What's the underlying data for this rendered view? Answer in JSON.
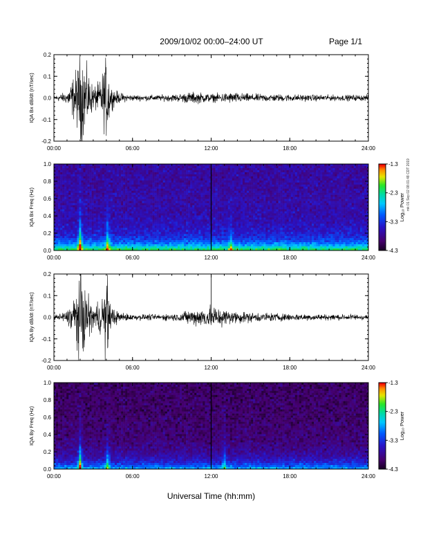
{
  "header": {
    "title": "2009/10/02   00:00–24:00 UT",
    "page": "Page 1/1"
  },
  "footer": {
    "xlabel": "Universal Time (hh:mm)",
    "side_tag": "mk 01 Sep 02 08:01:48 CDT 2019"
  },
  "chart_data": [
    {
      "type": "line",
      "ylabel": "IQA Bx dB/dt (nT/sec)",
      "ylim": [
        -0.2,
        0.2
      ],
      "yticks": [
        "0.2",
        "0.1",
        "0.0",
        "-0.1",
        "-0.2"
      ],
      "xticks": [
        "00:00",
        "06:00",
        "12:00",
        "18:00",
        "24:00"
      ],
      "xlim": [
        0,
        24
      ],
      "series": [
        {
          "x": [
            0,
            1,
            1.8,
            2,
            2.2,
            2.5,
            3,
            3.5,
            3.9,
            4.1,
            4.3,
            5,
            6,
            8,
            9.5,
            10.5,
            11.5,
            12,
            13.5,
            15,
            18,
            21,
            24
          ],
          "amplitude": [
            0.012,
            0.03,
            0.16,
            0.22,
            0.22,
            0.15,
            0.06,
            0.08,
            0.18,
            0.22,
            0.06,
            0.025,
            0.015,
            0.015,
            0.02,
            0.03,
            0.025,
            0.02,
            0.028,
            0.02,
            0.018,
            0.015,
            0.015
          ]
        }
      ]
    },
    {
      "type": "heatmap",
      "ylabel": "IQA Bx Freq (Hz)",
      "ylim": [
        0,
        1.0
      ],
      "yticks": [
        "1.0",
        "0.8",
        "0.6",
        "0.4",
        "0.2",
        "0.0"
      ],
      "xticks": [
        "00:00",
        "06:00",
        "12:00",
        "18:00",
        "24:00"
      ],
      "xlim": [
        0,
        24
      ],
      "colorbar": {
        "label": "Log₁₀ Power",
        "ticks": [
          "-1.3",
          "-2.3",
          "-3.3",
          "-4.3"
        ],
        "range": [
          -4.3,
          -1.3
        ]
      },
      "background_level": -3.7,
      "lowfreq_boost": 1.4,
      "bursts": [
        {
          "t": 2.0,
          "level": -1.5
        },
        {
          "t": 4.1,
          "level": -2.3
        },
        {
          "t": 12.0,
          "level": -4.3
        },
        {
          "t": 13.5,
          "level": -2.8
        }
      ]
    },
    {
      "type": "line",
      "ylabel": "IQA By dB/dt (nT/sec)",
      "ylim": [
        -0.2,
        0.2
      ],
      "yticks": [
        "0.2",
        "0.1",
        "0.0",
        "-0.1",
        "-0.2"
      ],
      "xticks": [
        "00:00",
        "06:00",
        "12:00",
        "18:00",
        "24:00"
      ],
      "xlim": [
        0,
        24
      ],
      "series": [
        {
          "x": [
            0,
            1,
            1.8,
            2,
            2.2,
            2.5,
            3,
            3.5,
            3.9,
            4.1,
            4.3,
            5,
            6,
            8,
            9.5,
            10.5,
            11.5,
            12,
            13.5,
            15,
            18,
            21,
            24
          ],
          "amplitude": [
            0.012,
            0.03,
            0.16,
            0.22,
            0.22,
            0.12,
            0.06,
            0.08,
            0.18,
            0.22,
            0.06,
            0.025,
            0.015,
            0.015,
            0.02,
            0.04,
            0.05,
            0.06,
            0.035,
            0.025,
            0.018,
            0.015,
            0.015
          ]
        }
      ]
    },
    {
      "type": "heatmap",
      "ylabel": "IQA By Freq (Hz)",
      "ylim": [
        0,
        1.0
      ],
      "yticks": [
        "1.0",
        "0.8",
        "0.6",
        "0.4",
        "0.2",
        "0.0"
      ],
      "xticks": [
        "00:00",
        "06:00",
        "12:00",
        "18:00",
        "24:00"
      ],
      "xlim": [
        0,
        24
      ],
      "colorbar": {
        "label": "Log₁₀ Power",
        "ticks": [
          "-1.3",
          "-2.3",
          "-3.3",
          "-4.3"
        ],
        "range": [
          -4.3,
          -1.3
        ]
      },
      "background_level": -4.0,
      "lowfreq_boost": 1.0,
      "bursts": [
        {
          "t": 2.0,
          "level": -1.8
        },
        {
          "t": 4.1,
          "level": -2.6
        },
        {
          "t": 12.0,
          "level": -4.3
        },
        {
          "t": 13.0,
          "level": -3.0
        }
      ]
    }
  ]
}
